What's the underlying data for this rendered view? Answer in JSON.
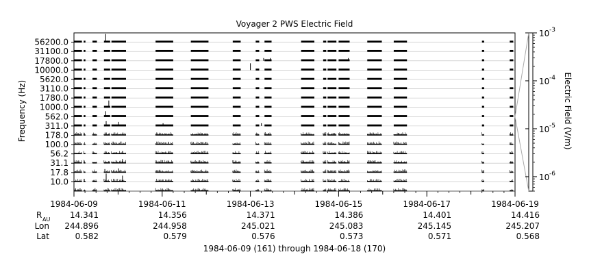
{
  "chart_data": {
    "type": "line",
    "title": "Voyager 2 PWS Electric Field",
    "ylabel": "Frequency (Hz)",
    "y2label": "Electric Field (V/m)",
    "xlabel": "1984-06-09 (161) through 1984-06-18 (170)",
    "channels": [
      "56200.0",
      "31100.0",
      "17800.0",
      "10000.0",
      "5620.0",
      "3110.0",
      "1780.0",
      "1000.0",
      "562.0",
      "311.0",
      "178.0",
      "100.0",
      "56.2",
      "31.1",
      "17.8",
      "10.0"
    ],
    "date_ticks": [
      "1984-06-09",
      "1984-06-11",
      "1984-06-13",
      "1984-06-15",
      "1984-06-17",
      "1984-06-19"
    ],
    "xlim": [
      "1984-06-09",
      "1984-06-19"
    ],
    "ephemeris": {
      "rows": [
        {
          "label": "R",
          "subscript": "AU",
          "values": [
            "14.341",
            "14.356",
            "14.371",
            "14.386",
            "14.401",
            "14.416"
          ]
        },
        {
          "label": "Lon",
          "values": [
            "244.896",
            "244.958",
            "245.021",
            "245.083",
            "245.145",
            "245.207"
          ]
        },
        {
          "label": "Lat",
          "values": [
            "0.582",
            "0.579",
            "0.576",
            "0.573",
            "0.571",
            "0.568"
          ]
        }
      ]
    },
    "colorbar": {
      "scale": "log",
      "range": [
        5e-07,
        0.001
      ],
      "ticks": [
        {
          "base": "10",
          "exp": "-3"
        },
        {
          "base": "10",
          "exp": "-4"
        },
        {
          "base": "10",
          "exp": "-5"
        },
        {
          "base": "10",
          "exp": "-6"
        }
      ]
    },
    "data_segments_days": [
      [
        0.0,
        0.18
      ],
      [
        0.22,
        0.26
      ],
      [
        0.42,
        0.52
      ],
      [
        0.68,
        0.82
      ],
      [
        0.85,
        1.18
      ],
      [
        1.85,
        2.25
      ],
      [
        2.65,
        3.05
      ],
      [
        3.6,
        3.78
      ],
      [
        4.12,
        4.2
      ],
      [
        4.32,
        4.48
      ],
      [
        5.15,
        5.45
      ],
      [
        5.65,
        5.72
      ],
      [
        5.75,
        5.95
      ],
      [
        6.0,
        6.25
      ],
      [
        6.65,
        6.98
      ],
      [
        7.25,
        7.55
      ],
      [
        9.25,
        9.3
      ],
      [
        9.88,
        9.96
      ]
    ]
  }
}
